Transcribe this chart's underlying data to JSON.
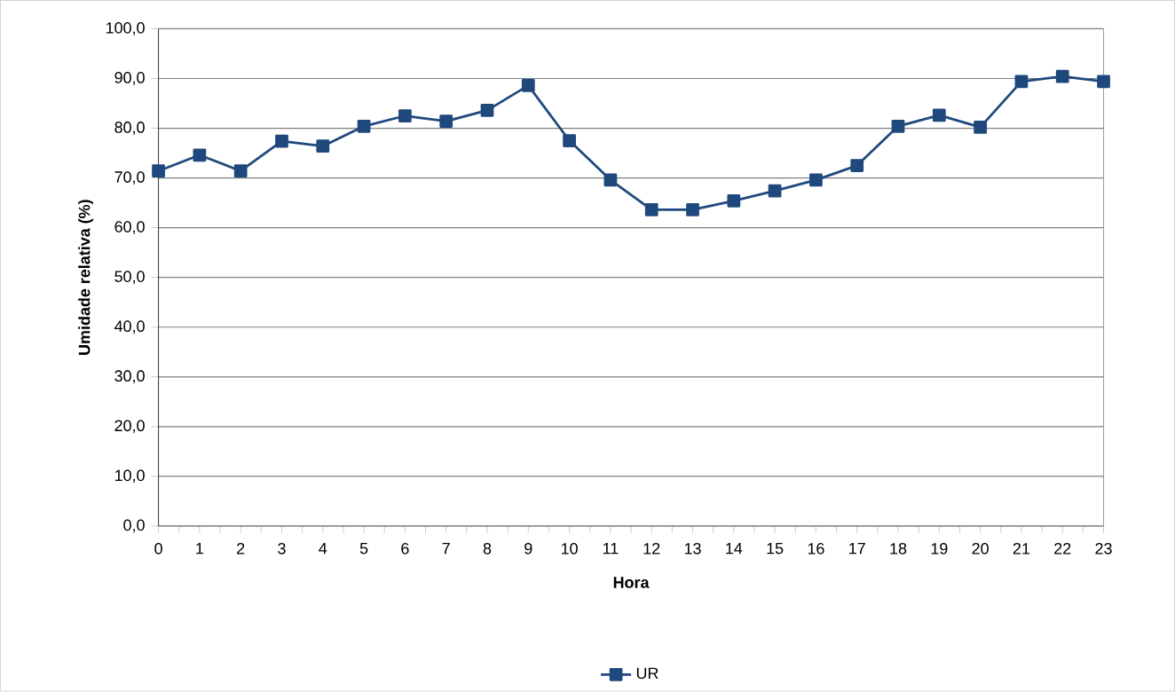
{
  "chart_data": {
    "type": "line",
    "xlabel": "Hora",
    "ylabel": "Umidade relativa (%)",
    "categories": [
      "0",
      "1",
      "2",
      "3",
      "4",
      "5",
      "6",
      "7",
      "8",
      "9",
      "10",
      "11",
      "12",
      "13",
      "14",
      "15",
      "16",
      "17",
      "18",
      "19",
      "20",
      "21",
      "22",
      "23"
    ],
    "series": [
      {
        "name": "UR",
        "color": "#1f497d",
        "values": [
          71.4,
          74.6,
          71.4,
          77.4,
          76.4,
          80.4,
          82.5,
          81.4,
          83.6,
          88.6,
          77.5,
          69.6,
          63.6,
          63.6,
          65.4,
          67.4,
          69.6,
          72.5,
          80.4,
          82.6,
          80.2,
          89.4,
          90.4,
          89.4
        ]
      }
    ],
    "ylim": [
      0,
      100
    ],
    "yticks": [
      {
        "value": 0,
        "label": "0,0"
      },
      {
        "value": 10,
        "label": "10,0"
      },
      {
        "value": 20,
        "label": "20,0"
      },
      {
        "value": 30,
        "label": "30,0"
      },
      {
        "value": 40,
        "label": "40,0"
      },
      {
        "value": 50,
        "label": "50,0"
      },
      {
        "value": 60,
        "label": "60,0"
      },
      {
        "value": 70,
        "label": "70,0"
      },
      {
        "value": 80,
        "label": "80,0"
      },
      {
        "value": 90,
        "label": "90,0"
      },
      {
        "value": 100,
        "label": "100,0"
      }
    ],
    "grid": "y",
    "legend": "bottom",
    "marker": "square",
    "line_style": "solid"
  }
}
